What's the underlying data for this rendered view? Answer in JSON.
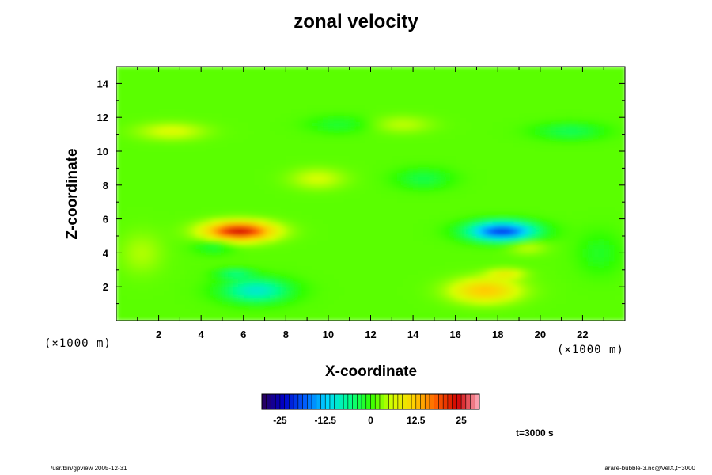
{
  "chart_data": {
    "type": "heatmap",
    "title": "zonal velocity",
    "xlabel": "X-coordinate",
    "ylabel": "Z-coordinate",
    "x_unit": "(×1000 m)",
    "y_unit": "(×1000 m)",
    "xlim": [
      0,
      24
    ],
    "ylim": [
      0,
      15
    ],
    "x_ticks": [
      2,
      4,
      6,
      8,
      10,
      12,
      14,
      16,
      18,
      20,
      22
    ],
    "y_ticks": [
      2,
      4,
      6,
      8,
      10,
      12,
      14
    ],
    "colorbar": {
      "range": [
        -30,
        30
      ],
      "ticks": [
        -25,
        -12.5,
        0,
        12.5,
        25
      ],
      "colormap": [
        "#2a005a",
        "#0000c8",
        "#0060ff",
        "#00d8ff",
        "#00ff90",
        "#30ff00",
        "#d8ff00",
        "#ffd000",
        "#ff6000",
        "#d00000",
        "#ffb0c0"
      ]
    },
    "background_value": 1.5,
    "features": [
      {
        "x": 5.8,
        "z": 5.3,
        "value": 22,
        "sx": 1.6,
        "sz": 0.55
      },
      {
        "x": 18.2,
        "z": 5.3,
        "value": -22,
        "sx": 1.6,
        "sz": 0.55
      },
      {
        "x": 4.6,
        "z": 4.4,
        "value": -4,
        "sx": 0.9,
        "sz": 0.45
      },
      {
        "x": 19.4,
        "z": 4.4,
        "value": 4,
        "sx": 0.9,
        "sz": 0.45
      },
      {
        "x": 6.6,
        "z": 1.8,
        "value": -11,
        "sx": 1.6,
        "sz": 0.7
      },
      {
        "x": 17.4,
        "z": 1.8,
        "value": 11,
        "sx": 1.6,
        "sz": 0.7
      },
      {
        "x": 5.6,
        "z": 2.8,
        "value": -6,
        "sx": 0.9,
        "sz": 0.3
      },
      {
        "x": 18.4,
        "z": 2.8,
        "value": 6,
        "sx": 0.9,
        "sz": 0.3
      },
      {
        "x": 2.6,
        "z": 11.2,
        "value": 5,
        "sx": 1.6,
        "sz": 0.5
      },
      {
        "x": 21.4,
        "z": 11.2,
        "value": -5,
        "sx": 1.6,
        "sz": 0.5
      },
      {
        "x": 10.5,
        "z": 11.6,
        "value": -3.5,
        "sx": 1.4,
        "sz": 0.5
      },
      {
        "x": 13.5,
        "z": 11.6,
        "value": 3.5,
        "sx": 1.4,
        "sz": 0.5
      },
      {
        "x": 14.5,
        "z": 8.4,
        "value": -4.5,
        "sx": 1.3,
        "sz": 0.6
      },
      {
        "x": 9.5,
        "z": 8.4,
        "value": 4.5,
        "sx": 1.3,
        "sz": 0.6
      },
      {
        "x": 1.2,
        "z": 4.0,
        "value": 3,
        "sx": 1.0,
        "sz": 1.2
      },
      {
        "x": 22.8,
        "z": 4.0,
        "value": -3,
        "sx": 1.0,
        "sz": 1.2
      }
    ]
  },
  "time_label": "t=3000 s",
  "footer": {
    "left": "/usr/bin/gpview 2005-12-31",
    "right": "arare-bubble-3.nc@VelX,t=3000"
  }
}
